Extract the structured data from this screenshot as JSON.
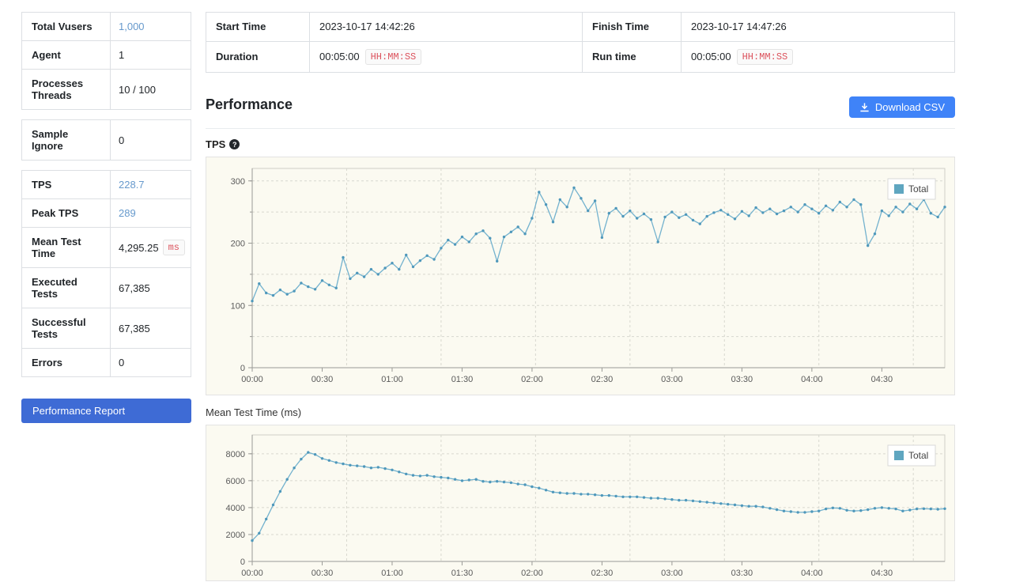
{
  "sidebar": {
    "groups": [
      {
        "rows": [
          {
            "label": "Total Vusers",
            "value": "1,000",
            "accent": true
          },
          {
            "label": "Agent",
            "value": "1"
          },
          {
            "label": "Processes Threads",
            "value": "10 / 100"
          }
        ]
      },
      {
        "rows": [
          {
            "label": "Sample Ignore",
            "value": "0"
          }
        ]
      },
      {
        "rows": [
          {
            "label": "TPS",
            "value": "228.7",
            "accent": true
          },
          {
            "label": "Peak TPS",
            "value": "289",
            "accent": true
          },
          {
            "label": "Mean Test Time",
            "value": "4,295.25",
            "unit_badge": "ms"
          },
          {
            "label": "Executed Tests",
            "value": "67,385"
          },
          {
            "label": "Successful Tests",
            "value": "67,385"
          },
          {
            "label": "Errors",
            "value": "0"
          }
        ]
      }
    ],
    "report_button_label": "Performance Report"
  },
  "summary": {
    "rows": [
      {
        "c1_label": "Start Time",
        "c1_value": "2023-10-17 14:42:26",
        "c2_label": "Finish Time",
        "c2_value": "2023-10-17 14:47:26"
      },
      {
        "c1_label": "Duration",
        "c1_value": "00:05:00",
        "c1_badge": "HH:MM:SS",
        "c2_label": "Run time",
        "c2_value": "00:05:00",
        "c2_badge": "HH:MM:SS"
      }
    ]
  },
  "performance_section": {
    "heading": "Performance",
    "download_button_label": "Download CSV"
  },
  "colors": {
    "accent_value": "#6699cc",
    "badge_text": "#dc545e",
    "report_button": "#3e6bd5",
    "download_button": "#3f83f8",
    "chart_bg": "#fbfaf1",
    "chart_line": "#73b2ce",
    "chart_marker": "#4f98bb",
    "legend_swatch": "#5fa6c0",
    "grid_line": "#d8d8cf",
    "axis_line": "#9a9a96"
  },
  "chart_data": [
    {
      "type": "line",
      "title": "TPS",
      "legend": {
        "position": "top-right",
        "entries": [
          "Total"
        ]
      },
      "x_interval_seconds": 3,
      "x_tick_interval_seconds": 30,
      "x_tick_labels": [
        "00:00",
        "00:30",
        "01:00",
        "01:30",
        "02:00",
        "02:30",
        "03:00",
        "03:30",
        "04:00",
        "04:30"
      ],
      "ylim": [
        0,
        320
      ],
      "y_ticks": [
        0,
        100,
        200,
        300
      ],
      "y_grid_step": 50,
      "x_grid_step_seconds": 40.5,
      "grid": true,
      "series": [
        {
          "name": "Total",
          "values": [
            107,
            135,
            120,
            116,
            125,
            118,
            123,
            136,
            130,
            126,
            140,
            133,
            128,
            177,
            143,
            152,
            146,
            158,
            150,
            160,
            168,
            158,
            181,
            162,
            172,
            180,
            174,
            192,
            205,
            198,
            210,
            202,
            215,
            220,
            208,
            171,
            210,
            218,
            226,
            215,
            240,
            282,
            262,
            234,
            270,
            258,
            289,
            272,
            252,
            268,
            209,
            248,
            256,
            243,
            252,
            240,
            247,
            238,
            202,
            242,
            250,
            241,
            246,
            237,
            231,
            243,
            249,
            253,
            246,
            239,
            251,
            244,
            257,
            249,
            255,
            247,
            252,
            258,
            250,
            262,
            255,
            248,
            260,
            253,
            266,
            258,
            270,
            262,
            196,
            215,
            252,
            244,
            258,
            250,
            263,
            255,
            270,
            248,
            242,
            258
          ]
        }
      ]
    },
    {
      "type": "line",
      "title": "Mean Test Time (ms)",
      "legend": {
        "position": "top-right",
        "entries": [
          "Total"
        ]
      },
      "x_interval_seconds": 3,
      "x_tick_interval_seconds": 30,
      "x_tick_labels": [
        "00:00",
        "00:30",
        "01:00",
        "01:30",
        "02:00",
        "02:30",
        "03:00",
        "03:30",
        "04:00",
        "04:30"
      ],
      "ylim": [
        0,
        9400
      ],
      "y_ticks": [
        0,
        2000,
        4000,
        6000,
        8000
      ],
      "y_grid_step": 2000,
      "x_grid_step_seconds": 40.5,
      "grid": true,
      "series": [
        {
          "name": "Total",
          "values": [
            1550,
            2100,
            3150,
            4200,
            5200,
            6100,
            6950,
            7600,
            8100,
            7950,
            7650,
            7500,
            7350,
            7250,
            7150,
            7100,
            7050,
            6950,
            7000,
            6900,
            6800,
            6650,
            6500,
            6400,
            6350,
            6400,
            6300,
            6250,
            6200,
            6100,
            6000,
            6050,
            6100,
            5950,
            5900,
            5950,
            5900,
            5850,
            5750,
            5700,
            5550,
            5450,
            5300,
            5150,
            5100,
            5050,
            5050,
            5000,
            5000,
            4950,
            4900,
            4900,
            4850,
            4800,
            4800,
            4800,
            4750,
            4700,
            4700,
            4650,
            4600,
            4550,
            4550,
            4500,
            4450,
            4400,
            4350,
            4300,
            4250,
            4200,
            4150,
            4100,
            4100,
            4050,
            3950,
            3850,
            3750,
            3700,
            3650,
            3650,
            3700,
            3750,
            3900,
            3980,
            3950,
            3800,
            3750,
            3780,
            3850,
            3950,
            4000,
            3950,
            3900,
            3750,
            3820,
            3900,
            3920,
            3900,
            3880,
            3920
          ]
        }
      ]
    }
  ]
}
